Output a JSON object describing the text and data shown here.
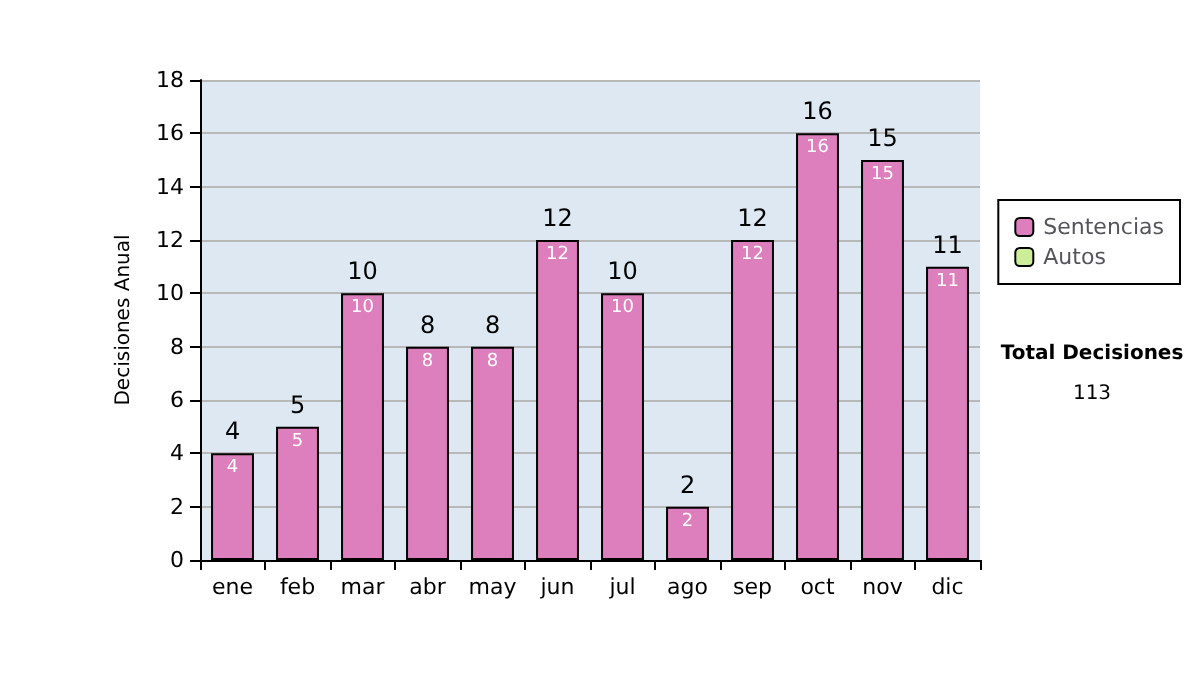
{
  "chart_data": {
    "type": "bar",
    "ylabel": "Decisiones Anual",
    "categories": [
      "ene",
      "feb",
      "mar",
      "abr",
      "may",
      "jun",
      "jul",
      "ago",
      "sep",
      "oct",
      "nov",
      "dic"
    ],
    "series": [
      {
        "name": "Sentencias",
        "color": "#dd7fbd",
        "values": [
          4,
          5,
          10,
          8,
          8,
          12,
          10,
          2,
          12,
          16,
          15,
          11
        ]
      },
      {
        "name": "Autos",
        "color": "#ccee99",
        "values": [
          null,
          null,
          null,
          null,
          null,
          null,
          null,
          null,
          null,
          null,
          null,
          null
        ]
      }
    ],
    "stacked": true,
    "data_labels": true,
    "totals": [
      "4",
      "5",
      "10",
      "8",
      "8",
      "12",
      "10",
      "2",
      "12",
      "16",
      "15",
      "11"
    ],
    "ylim": [
      0,
      18
    ],
    "yticks": [
      0,
      2,
      4,
      6,
      8,
      10,
      12,
      14,
      16,
      18
    ],
    "grid": "y",
    "legend": "right",
    "annotations": [
      "Total Decisiones",
      "113"
    ]
  }
}
